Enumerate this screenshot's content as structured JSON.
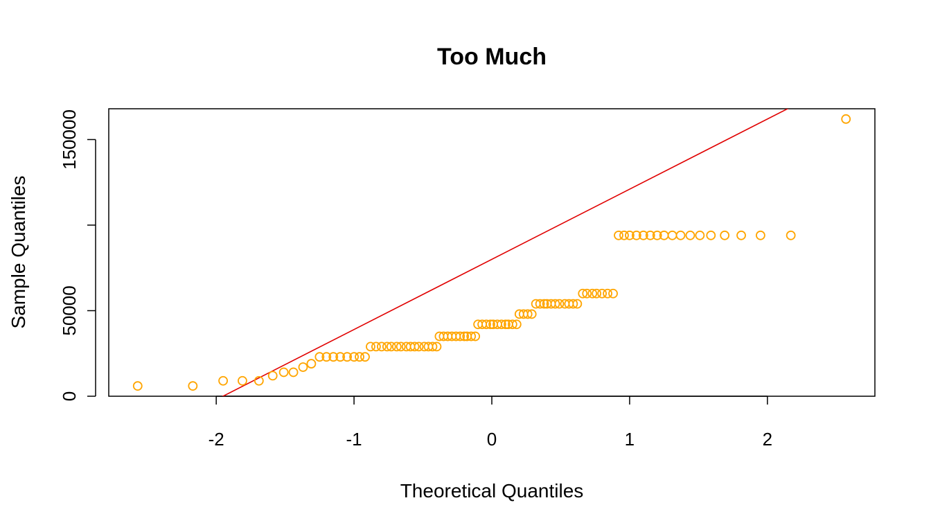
{
  "chart_data": {
    "type": "scatter",
    "title": "Too Much",
    "xlabel": "Theoretical Quantiles",
    "ylabel": "Sample Quantiles",
    "xlim": [
      -2.78,
      2.78
    ],
    "ylim": [
      0,
      168000
    ],
    "x_ticks": [
      -2,
      -1,
      0,
      1,
      2
    ],
    "x_tick_labels": [
      "-2",
      "-1",
      "0",
      "1",
      "2"
    ],
    "y_ticks": [
      0,
      50000,
      100000,
      150000
    ],
    "y_tick_labels": [
      "0",
      "50000",
      "",
      "150000"
    ],
    "grid": false,
    "legend": "none",
    "point_color": "#FFA500",
    "line_color": "#E00000",
    "reference_line": {
      "slope": 41000,
      "intercept": 80000
    },
    "points": [
      [
        -2.57,
        6000
      ],
      [
        -2.17,
        6000
      ],
      [
        -1.95,
        9000
      ],
      [
        -1.81,
        9000
      ],
      [
        -1.69,
        9000
      ],
      [
        -1.59,
        12000
      ],
      [
        -1.51,
        14000
      ],
      [
        -1.44,
        14000
      ],
      [
        -1.37,
        17000
      ],
      [
        -1.31,
        19000
      ],
      [
        -1.25,
        23000
      ],
      [
        -1.2,
        23000
      ],
      [
        -1.15,
        23000
      ],
      [
        -1.1,
        23000
      ],
      [
        -1.05,
        23000
      ],
      [
        -1.0,
        23000
      ],
      [
        -0.96,
        23000
      ],
      [
        -0.92,
        23000
      ],
      [
        -0.88,
        29000
      ],
      [
        -0.84,
        29000
      ],
      [
        -0.8,
        29000
      ],
      [
        -0.76,
        29000
      ],
      [
        -0.73,
        29000
      ],
      [
        -0.69,
        29000
      ],
      [
        -0.66,
        29000
      ],
      [
        -0.62,
        29000
      ],
      [
        -0.59,
        29000
      ],
      [
        -0.56,
        29000
      ],
      [
        -0.53,
        29000
      ],
      [
        -0.49,
        29000
      ],
      [
        -0.46,
        29000
      ],
      [
        -0.43,
        29000
      ],
      [
        -0.4,
        29000
      ],
      [
        -0.38,
        35000
      ],
      [
        -0.35,
        35000
      ],
      [
        -0.32,
        35000
      ],
      [
        -0.29,
        35000
      ],
      [
        -0.26,
        35000
      ],
      [
        -0.23,
        35000
      ],
      [
        -0.2,
        35000
      ],
      [
        -0.18,
        35000
      ],
      [
        -0.15,
        35000
      ],
      [
        -0.12,
        35000
      ],
      [
        -0.1,
        42000
      ],
      [
        -0.07,
        42000
      ],
      [
        -0.04,
        42000
      ],
      [
        -0.01,
        42000
      ],
      [
        0.01,
        42000
      ],
      [
        0.04,
        42000
      ],
      [
        0.07,
        42000
      ],
      [
        0.1,
        42000
      ],
      [
        0.12,
        42000
      ],
      [
        0.15,
        42000
      ],
      [
        0.18,
        42000
      ],
      [
        0.2,
        48000
      ],
      [
        0.23,
        48000
      ],
      [
        0.26,
        48000
      ],
      [
        0.29,
        48000
      ],
      [
        0.32,
        54000
      ],
      [
        0.35,
        54000
      ],
      [
        0.38,
        54000
      ],
      [
        0.4,
        54000
      ],
      [
        0.43,
        54000
      ],
      [
        0.46,
        54000
      ],
      [
        0.49,
        54000
      ],
      [
        0.53,
        54000
      ],
      [
        0.56,
        54000
      ],
      [
        0.59,
        54000
      ],
      [
        0.62,
        54000
      ],
      [
        0.66,
        60000
      ],
      [
        0.69,
        60000
      ],
      [
        0.73,
        60000
      ],
      [
        0.76,
        60000
      ],
      [
        0.8,
        60000
      ],
      [
        0.84,
        60000
      ],
      [
        0.88,
        60000
      ],
      [
        0.92,
        94000
      ],
      [
        0.96,
        94000
      ],
      [
        1.0,
        94000
      ],
      [
        1.05,
        94000
      ],
      [
        1.1,
        94000
      ],
      [
        1.15,
        94000
      ],
      [
        1.2,
        94000
      ],
      [
        1.25,
        94000
      ],
      [
        1.31,
        94000
      ],
      [
        1.37,
        94000
      ],
      [
        1.44,
        94000
      ],
      [
        1.51,
        94000
      ],
      [
        1.59,
        94000
      ],
      [
        1.69,
        94000
      ],
      [
        1.81,
        94000
      ],
      [
        1.95,
        94000
      ],
      [
        2.17,
        94000
      ],
      [
        2.57,
        162000
      ]
    ]
  }
}
